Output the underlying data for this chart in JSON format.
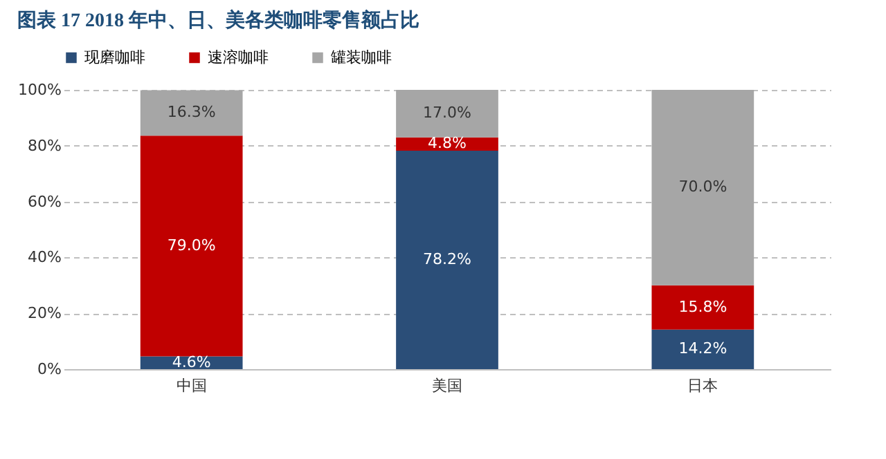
{
  "chart_data": {
    "type": "bar",
    "stacked": true,
    "title": "图表 17   2018 年中、日、美各类咖啡零售额占比",
    "categories": [
      "中国",
      "美国",
      "日本"
    ],
    "series": [
      {
        "name": "现磨咖啡",
        "color": "#2b4e78",
        "values": [
          4.6,
          78.2,
          14.2
        ],
        "value_labels": [
          "4.6%",
          "78.2%",
          "14.2%"
        ]
      },
      {
        "name": "速溶咖啡",
        "color": "#c00000",
        "values": [
          79.0,
          4.8,
          15.8
        ],
        "value_labels": [
          "79.0%",
          "4.8%",
          "15.8%"
        ]
      },
      {
        "name": "罐装咖啡",
        "color": "#a6a6a6",
        "values": [
          16.3,
          17.0,
          70.0
        ],
        "value_labels": [
          "16.3%",
          "17.0%",
          "70.0%"
        ]
      }
    ],
    "ylim": [
      0,
      100
    ],
    "yticks": [
      {
        "value": 0,
        "label": "0%"
      },
      {
        "value": 20,
        "label": "20%"
      },
      {
        "value": 40,
        "label": "40%"
      },
      {
        "value": 60,
        "label": "60%"
      },
      {
        "value": 80,
        "label": "80%"
      },
      {
        "value": 100,
        "label": "100%"
      }
    ],
    "grid": "y",
    "legend": "top"
  }
}
